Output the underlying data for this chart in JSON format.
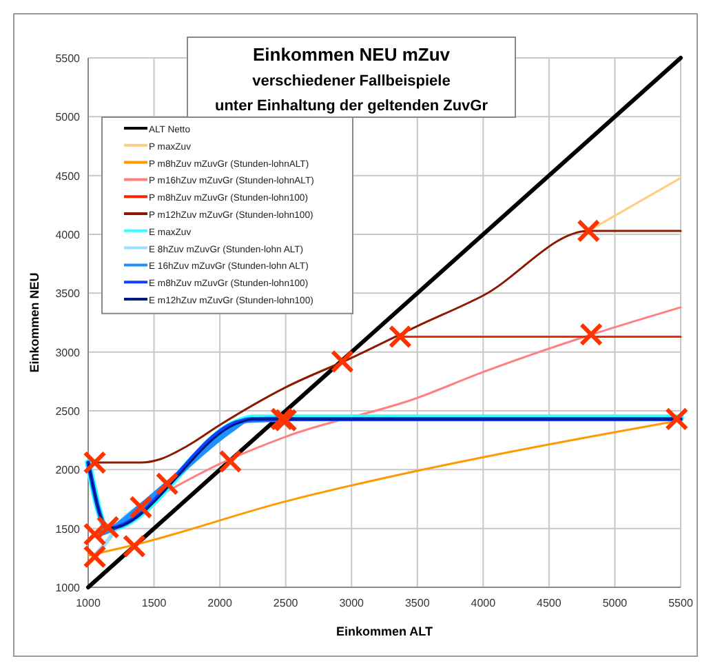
{
  "chart_data": {
    "type": "line",
    "title": "Einkommen NEU mZuv\nverschiedener Fallbeispiele\nunter Einhaltung der geltenden ZuvGr",
    "xlabel": "Einkommen ALT",
    "ylabel": "Einkommen NEU",
    "xlim": [
      1000,
      5500
    ],
    "xticks": [
      1000,
      1500,
      2000,
      2500,
      3000,
      3500,
      4000,
      4500,
      5000,
      5500
    ],
    "ylim": [
      1000,
      5500
    ],
    "yticks": [
      1000,
      1500,
      2000,
      2500,
      3000,
      3500,
      4000,
      4500,
      5000,
      5500
    ],
    "grid": true,
    "legend": "top left",
    "marker": "none",
    "line_style": "solid",
    "series": [
      {
        "name": "ALT Netto",
        "color": "#000000",
        "x": [
          1000,
          5500
        ],
        "values": [
          1000,
          5500
        ]
      },
      {
        "name": "P maxZuv",
        "color": "#ffcc80",
        "x": [
          4800,
          5500
        ],
        "values": [
          4030,
          4480
        ]
      },
      {
        "name": "P m8hZuv mZuvGr (Stunden-lohnALT)",
        "color": "#ff9900",
        "x": [
          1000,
          1350,
          2500,
          3500,
          4200,
          5500
        ],
        "values": [
          1270,
          1360,
          1730,
          1990,
          2150,
          2420
        ]
      },
      {
        "name": "P m16hZuv mZuvGr (Stunden-lohnALT)",
        "color": "#ff8080",
        "x": [
          1400,
          2000,
          2500,
          3000,
          3500,
          4000,
          4800,
          5500
        ],
        "values": [
          1690,
          2050,
          2280,
          null,
          2610,
          2830,
          3140,
          3380
        ]
      },
      {
        "name": "P m8hZuv mZuvGr (Stunden-lohn100)",
        "color": "#ff2200",
        "x": [
          3370,
          5500
        ],
        "values": [
          3130,
          3130
        ]
      },
      {
        "name": "P m12hZuv mZuvGr (Stunden-lohn100)",
        "color": "#8b1a00",
        "x": [
          1000,
          1400,
          1550,
          1750,
          2000,
          2500,
          3000,
          3500,
          4000,
          4800,
          5500
        ],
        "values": [
          2060,
          2060,
          2090,
          2200,
          2380,
          2700,
          2950,
          3220,
          3480,
          4030,
          4030
        ]
      },
      {
        "name": "E maxZuv",
        "color": "#33ffff",
        "x": [
          1000,
          1150,
          2150,
          2250,
          5500
        ],
        "values": [
          2060,
          1500,
          2410,
          2440,
          2440
        ]
      },
      {
        "name": "E 8hZuv mZuvGr (Stunden-lohn ALT)",
        "color": "#99ddff",
        "x": [
          1050,
          1150,
          1250,
          1400
        ],
        "values": [
          1270,
          1400,
          1560,
          1690
        ]
      },
      {
        "name": "E 16hZuv mZuvGr (Stunden-lohn ALT)",
        "color": "#1e90ff",
        "x": [
          1100,
          1150,
          1400,
          1600,
          2100,
          2200,
          2500
        ],
        "values": [
          1460,
          1480,
          1690,
          1880,
          2350,
          2420,
          2430
        ]
      },
      {
        "name": "E m8hZuv mZuvGr (Stunden-lohn100)",
        "color": "#1040ff",
        "x": [
          1000,
          1150,
          2150,
          2250,
          5500
        ],
        "values": [
          2060,
          1500,
          2410,
          2430,
          2430
        ]
      },
      {
        "name": "E m12hZuv mZuvGr (Stunden-lohn100)",
        "color": "#001a80",
        "x": [
          1000,
          1150,
          2150,
          2250,
          5500
        ],
        "values": [
          2060,
          1500,
          2400,
          2430,
          2430
        ]
      },
      {
        "type": "scatter",
        "marker": "cross",
        "color": "#ff3300",
        "x": [
          1050,
          1050,
          1050,
          1150,
          1350,
          1400,
          1600,
          2080,
          2470,
          2500,
          2930,
          3370,
          4800,
          4820,
          5470
        ],
        "values": [
          2060,
          1450,
          1260,
          1510,
          1350,
          1680,
          1880,
          2070,
          2430,
          2420,
          2920,
          3130,
          4030,
          3150,
          2430
        ]
      }
    ]
  }
}
